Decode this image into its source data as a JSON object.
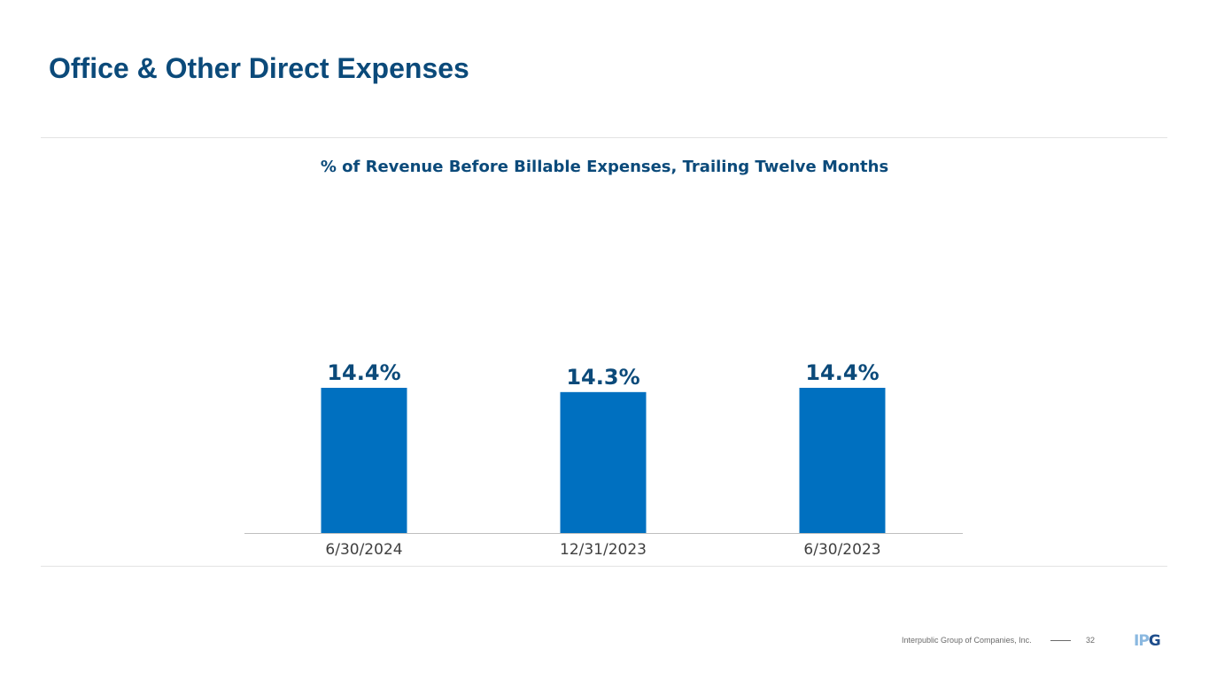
{
  "slide": {
    "title": "Office & Other Direct Expenses"
  },
  "colors": {
    "title": "#0b4a7a",
    "bar": "#0070c0",
    "axis_label": "#404040",
    "axis_line": "#bfbfbf",
    "logo_light": "#8ab8e0",
    "logo_dark": "#1f4e8c"
  },
  "chart_data": {
    "type": "bar",
    "title": "% of Revenue Before Billable Expenses, Trailing Twelve Months",
    "categories": [
      "6/30/2024",
      "12/31/2023",
      "6/30/2023"
    ],
    "values": [
      14.4,
      14.3,
      14.4
    ],
    "data_labels": [
      "14.4%",
      "14.3%",
      "14.4%"
    ],
    "value_unit": "%",
    "xlabel": "",
    "ylabel": "",
    "ylim": [
      0,
      14.4
    ],
    "grid": false,
    "legend": "none"
  },
  "footer": {
    "company": "Interpublic Group of Companies, Inc.",
    "page_number": "32"
  },
  "logo": {
    "text_part1": "I",
    "text_part2": "P",
    "text_part3": "G"
  }
}
